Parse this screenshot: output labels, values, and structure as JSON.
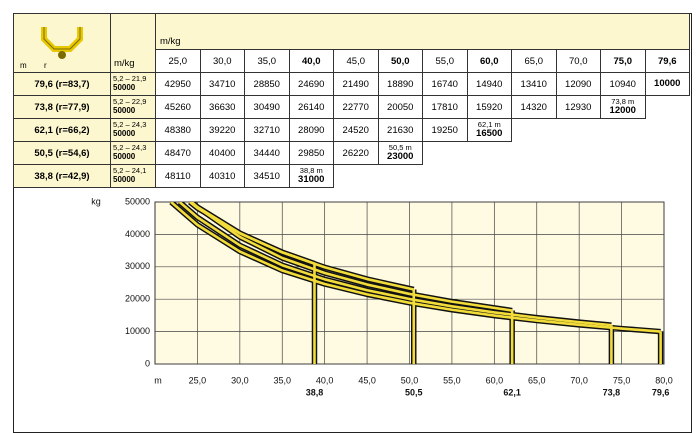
{
  "table": {
    "corner_labels": [
      "m",
      "r"
    ],
    "unit": "m/kg",
    "unit_top": "m/kg",
    "columns": [
      "25,0",
      "30,0",
      "35,0",
      "40,0",
      "45,0",
      "50,0",
      "55,0",
      "60,0",
      "65,0",
      "70,0",
      "75,0",
      "79,6"
    ],
    "bold_columns": [
      3,
      5,
      7,
      10,
      11
    ],
    "rows": [
      {
        "label": "79,6 (r=83,7)",
        "range": "5,2 – 21,9",
        "max": "50000",
        "cells": [
          "42950",
          "34710",
          "28850",
          "24690",
          "21490",
          "18890",
          "16740",
          "14940",
          "13410",
          "12090",
          "10940"
        ],
        "end": {
          "load": "10000"
        }
      },
      {
        "label": "73,8 (r=77,9)",
        "range": "5,2 – 22,9",
        "max": "50000",
        "cells": [
          "45260",
          "36630",
          "30490",
          "26140",
          "22770",
          "20050",
          "17810",
          "15920",
          "14320",
          "12930"
        ],
        "end": {
          "length": "73,8 m",
          "load": "12000"
        }
      },
      {
        "label": "62,1 (r=66,2)",
        "range": "5,2 – 24,3",
        "max": "50000",
        "cells": [
          "48380",
          "39220",
          "32710",
          "28090",
          "24520",
          "21630",
          "19250"
        ],
        "end": {
          "length": "62,1 m",
          "load": "16500"
        }
      },
      {
        "label": "50,5 (r=54,6)",
        "range": "5,2 – 24,3",
        "max": "50000",
        "cells": [
          "48470",
          "40400",
          "34440",
          "29850",
          "26220"
        ],
        "end": {
          "length": "50,5 m",
          "load": "23000"
        }
      },
      {
        "label": "38,8 (r=42,9)",
        "range": "5,2 – 24,1",
        "max": "50000",
        "cells": [
          "48110",
          "40310",
          "34510"
        ],
        "end": {
          "length": "38,8 m",
          "load": "31000"
        }
      }
    ]
  },
  "chart_data": {
    "type": "line",
    "ylabel": "kg",
    "xlabel": "m",
    "xlim": [
      20,
      80
    ],
    "ylim": [
      0,
      50000
    ],
    "yticks": [
      0,
      10000,
      20000,
      30000,
      40000,
      50000
    ],
    "xticks": [
      {
        "value": 25,
        "label": "25,0"
      },
      {
        "value": 30,
        "label": "30,0"
      },
      {
        "value": 35,
        "label": "35,0"
      },
      {
        "value": 40,
        "label": "40,0"
      },
      {
        "value": 45,
        "label": "45,0"
      },
      {
        "value": 50,
        "label": "50,0"
      },
      {
        "value": 55,
        "label": "55,0"
      },
      {
        "value": 60,
        "label": "60,0"
      },
      {
        "value": 65,
        "label": "65,0"
      },
      {
        "value": 70,
        "label": "70,0"
      },
      {
        "value": 75,
        "label": "75,0"
      },
      {
        "value": 80,
        "label": "80,0"
      }
    ],
    "boom_ticks": [
      {
        "value": 38.8,
        "label": "38,8"
      },
      {
        "value": 50.5,
        "label": "50,5"
      },
      {
        "value": 62.1,
        "label": "62,1"
      },
      {
        "value": 73.8,
        "label": "73,8"
      },
      {
        "value": 79.6,
        "label": "79,6"
      }
    ],
    "grid": true,
    "color": "#111111",
    "band_color": "#f2dc3a",
    "background": "#fffbe3",
    "series": [
      {
        "x": [
          21.9,
          25,
          30,
          35,
          40,
          45,
          50,
          55,
          60,
          65,
          70,
          75,
          79.6
        ],
        "values": [
          50000,
          42950,
          34710,
          28850,
          24690,
          21490,
          18890,
          16740,
          14940,
          13410,
          12090,
          10940,
          10000
        ]
      },
      {
        "x": [
          22.9,
          25,
          30,
          35,
          40,
          45,
          50,
          55,
          60,
          65,
          70,
          73.8
        ],
        "values": [
          50000,
          45260,
          36630,
          30490,
          26140,
          22770,
          20050,
          17810,
          15920,
          14320,
          12930,
          12000
        ]
      },
      {
        "x": [
          24.3,
          25,
          30,
          35,
          40,
          45,
          50,
          55,
          62.1
        ],
        "values": [
          50000,
          48380,
          39220,
          32710,
          28090,
          24520,
          21630,
          19250,
          16500
        ]
      },
      {
        "x": [
          24.3,
          25,
          30,
          35,
          40,
          45,
          50.5
        ],
        "values": [
          50000,
          48470,
          40400,
          34440,
          29850,
          26220,
          23000
        ]
      },
      {
        "x": [
          24.1,
          25,
          30,
          35,
          38.8
        ],
        "values": [
          50000,
          48110,
          40310,
          34510,
          31000
        ]
      }
    ]
  }
}
